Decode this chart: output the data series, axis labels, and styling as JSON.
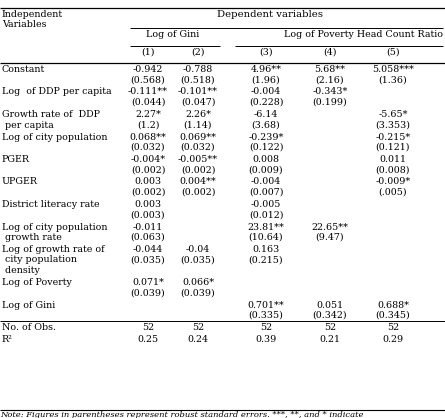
{
  "col_numbers": [
    "(1)",
    "(2)",
    "(3)",
    "(4)",
    "(5)"
  ],
  "data": [
    [
      "-0.942",
      "-0.788",
      "4.96**",
      "5.68**",
      "5.058***"
    ],
    [
      "(0.568)",
      "(0.518)",
      "(1.96)",
      "(2.16)",
      "(1.36)"
    ],
    [
      "-0.111**",
      "-0.101**",
      "-0.004",
      "-0.343*",
      ""
    ],
    [
      "(0.044)",
      "(0.047)",
      "(0.228)",
      "(0.199)",
      ""
    ],
    [
      "2.27*",
      "2.26*",
      "-6.14",
      "",
      "-5.65*"
    ],
    [
      "(1.2)",
      "(1.14)",
      "(3.68)",
      "",
      "(3.353)"
    ],
    [
      "0.068**",
      "0.069**",
      "-0.239*",
      "",
      "-0.215*"
    ],
    [
      "(0.032)",
      "(0.032)",
      "(0.122)",
      "",
      "(0.121)"
    ],
    [
      "-0.004*",
      "-0.005**",
      "0.008",
      "",
      "0.011"
    ],
    [
      "(0.002)",
      "(0.002)",
      "(0.009)",
      "",
      "(0.008)"
    ],
    [
      "0.003",
      "0.004**",
      "-0.004",
      "",
      "-0.009*"
    ],
    [
      "(0.002)",
      "(0.002)",
      "(0.007)",
      "",
      "(.005)"
    ],
    [
      "0.003",
      "",
      "-0.005",
      "",
      ""
    ],
    [
      "(0.003)",
      "",
      "(0.012)",
      "",
      ""
    ],
    [
      "-0.011",
      "",
      "23.81**",
      "22.65**",
      ""
    ],
    [
      "(0.063)",
      "",
      "(10.64)",
      "(9.47)",
      ""
    ],
    [
      "-0.044",
      "-0.04",
      "0.163",
      "",
      ""
    ],
    [
      "(0.035)",
      "(0.035)",
      "(0.215)",
      "",
      ""
    ],
    [
      "0.071*",
      "0.066*",
      "",
      "",
      ""
    ],
    [
      "(0.039)",
      "(0.039)",
      "",
      "",
      ""
    ],
    [
      "",
      "",
      "0.701**",
      "0.051",
      "0.688*"
    ],
    [
      "",
      "",
      "(0.335)",
      "(0.342)",
      "(0.345)"
    ],
    [
      "52",
      "52",
      "52",
      "52",
      "52"
    ],
    [
      "0.25",
      "0.24",
      "0.39",
      "0.21",
      "0.29"
    ]
  ],
  "row_groups": [
    {
      "label": [
        "Constant"
      ],
      "data_rows": [
        0,
        1
      ]
    },
    {
      "label": [
        "Log  of DDP per capita"
      ],
      "data_rows": [
        2,
        3
      ]
    },
    {
      "label": [
        "Growth rate of  DDP",
        " per capita"
      ],
      "data_rows": [
        4,
        5
      ]
    },
    {
      "label": [
        "Log of city population"
      ],
      "data_rows": [
        6,
        7
      ]
    },
    {
      "label": [
        "PGER"
      ],
      "data_rows": [
        8,
        9
      ]
    },
    {
      "label": [
        "UPGER"
      ],
      "data_rows": [
        10,
        11
      ]
    },
    {
      "label": [
        "District literacy rate"
      ],
      "data_rows": [
        12,
        13
      ]
    },
    {
      "label": [
        "Log of city population",
        " growth rate"
      ],
      "data_rows": [
        14,
        15
      ]
    },
    {
      "label": [
        "Log of growth rate of",
        " city population",
        " density"
      ],
      "data_rows": [
        16,
        17
      ]
    },
    {
      "label": [
        "Log of Poverty"
      ],
      "data_rows": [
        18,
        19
      ]
    },
    {
      "label": [
        "Log of Gini"
      ],
      "data_rows": [
        20,
        21
      ]
    },
    {
      "label": [
        "No. of Obs."
      ],
      "data_rows": [
        22
      ]
    },
    {
      "label": [
        "R²"
      ],
      "data_rows": [
        23
      ]
    }
  ],
  "note": "Note: Figures in parentheses represent robust standard errors. ***, **, and * indicate",
  "bg_color": "#FFFFFF",
  "text_color": "#000000",
  "font_size": 6.8
}
